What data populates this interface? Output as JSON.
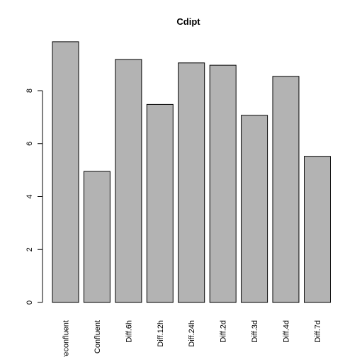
{
  "chart_data": {
    "type": "bar",
    "title": "Cdipt",
    "xlabel": "",
    "ylabel": "",
    "categories": [
      "Preconfluent",
      "Confluent",
      "Diff.6h",
      "Diff.12h",
      "Diff.24h",
      "Diff.2d",
      "Diff.3d",
      "Diff.4d",
      "Diff.7d"
    ],
    "values": [
      9.85,
      4.95,
      9.18,
      7.48,
      9.05,
      8.96,
      7.07,
      8.54,
      5.52
    ],
    "ylim": [
      0,
      10
    ],
    "yticks": [
      "0",
      "2",
      "4",
      "6",
      "8"
    ],
    "bar_color": "#b3b3b3",
    "grid": false,
    "legend": "none"
  }
}
